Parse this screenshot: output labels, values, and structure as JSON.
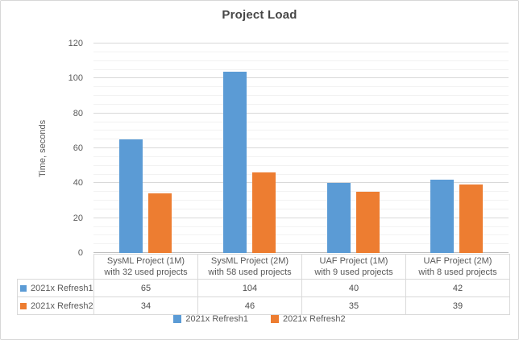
{
  "chart_data": {
    "type": "bar",
    "title": "Project Load",
    "ylabel": "Time, seconds",
    "ylim": [
      0,
      120
    ],
    "yticks": [
      0,
      20,
      40,
      60,
      80,
      100,
      120
    ],
    "minor_tick_step": 5,
    "grid": "horizontal-major-and-minor",
    "legend_position": "bottom",
    "data_table_shown": true,
    "categories": [
      "SysML Project (1M)\nwith 32 used projects",
      "SysML Project (2M)\nwith 58 used projects",
      "UAF Project (1M)\nwith 9 used projects",
      "UAF Project (2M)\nwith 8 used projects"
    ],
    "series": [
      {
        "name": "2021x Refresh1",
        "color": "#5B9BD5",
        "values": [
          65,
          104,
          40,
          42
        ]
      },
      {
        "name": "2021x Refresh2",
        "color": "#ED7D31",
        "values": [
          34,
          46,
          35,
          39
        ]
      }
    ],
    "colors": {
      "major_gridline": "#d9d9d9",
      "minor_gridline": "#f2f2f2",
      "axis_line": "#bfbfbf",
      "text": "#595959",
      "table_border": "#d9d9d9"
    }
  }
}
